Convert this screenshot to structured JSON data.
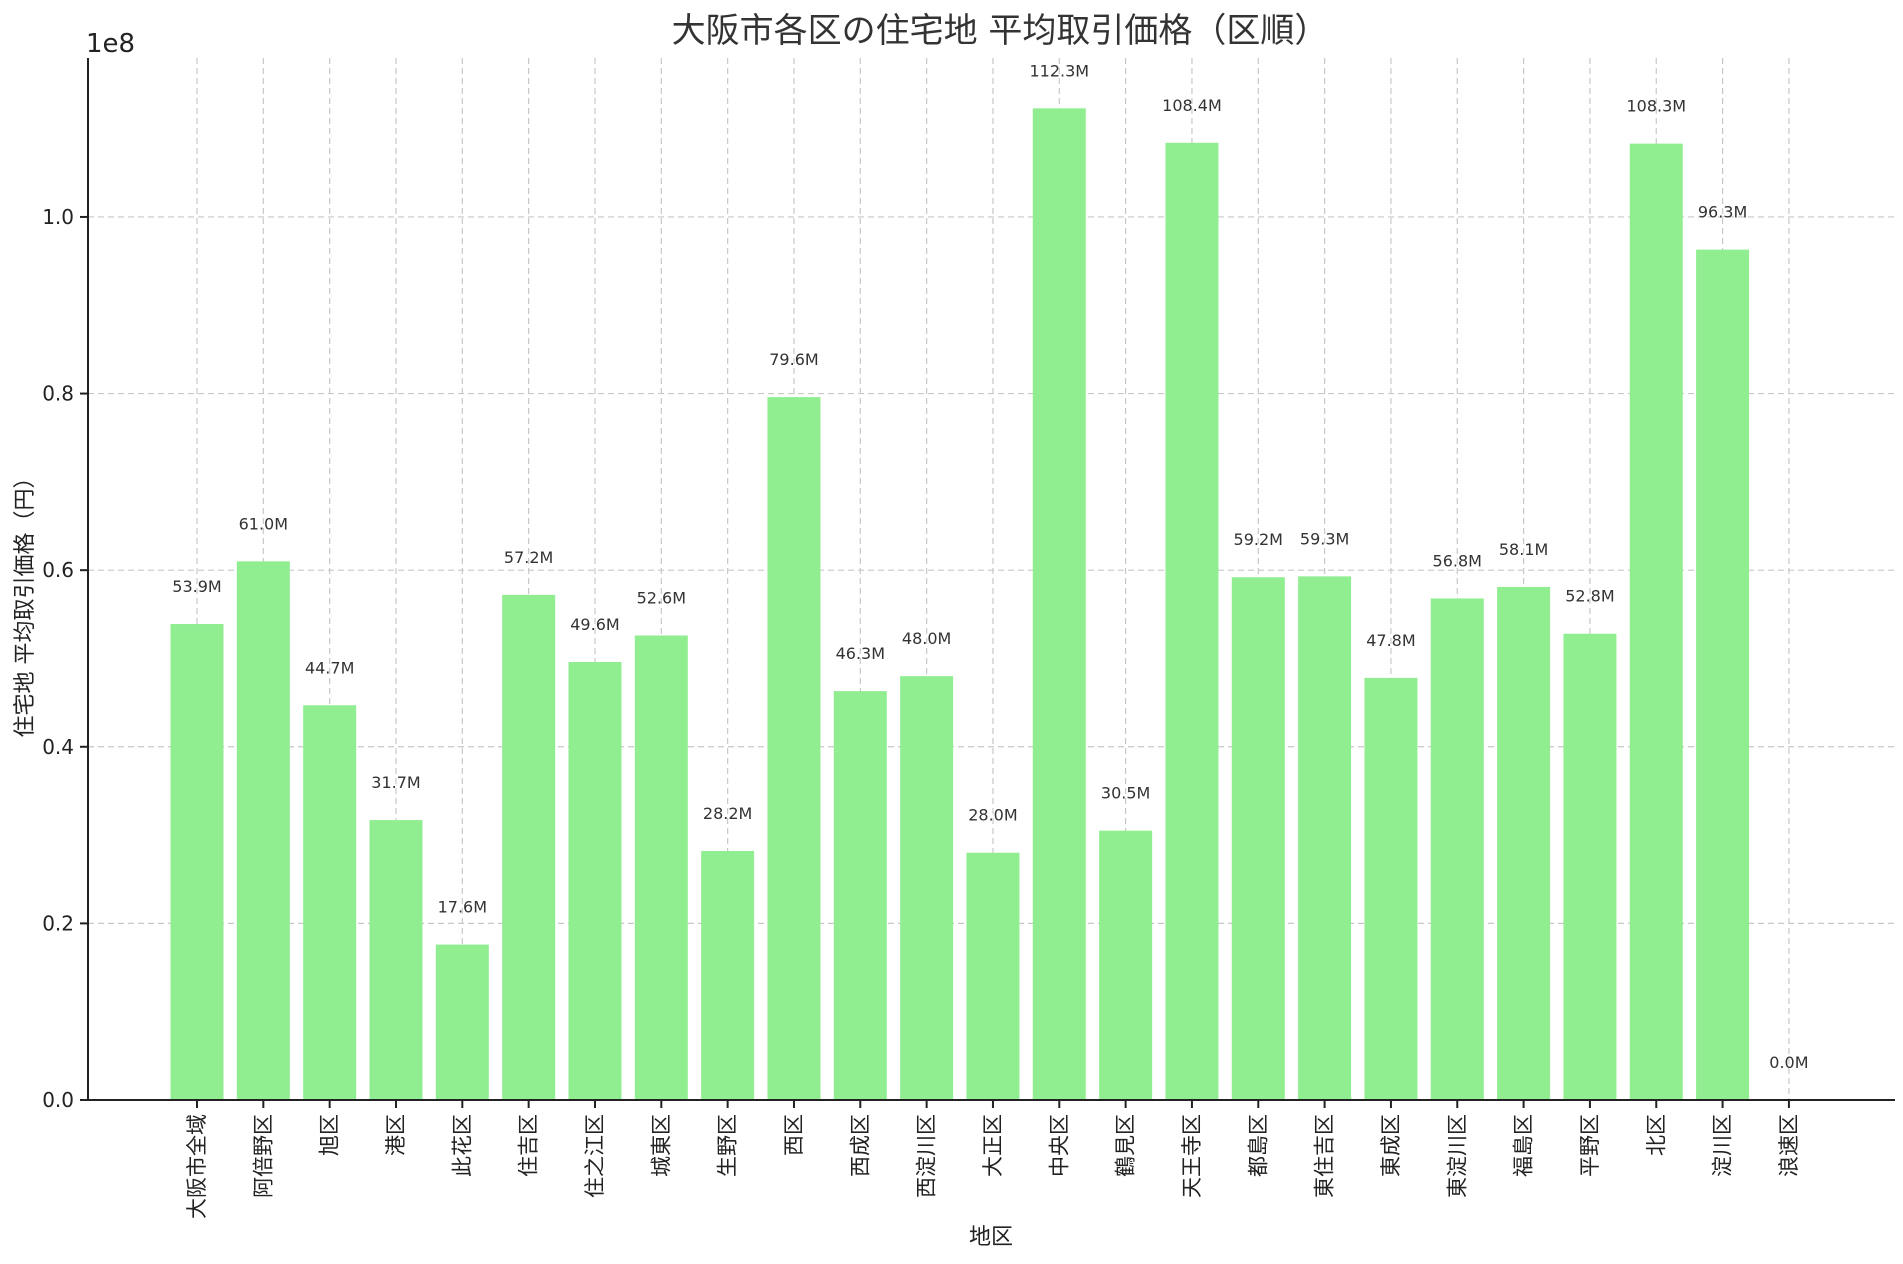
{
  "chart_data": {
    "type": "bar",
    "title": "大阪市各区の住宅地 平均取引価格（区順）",
    "xlabel": "地区",
    "ylabel": "住宅地 平均取引価格（円）",
    "y_offset_label": "1e8",
    "ylim": [
      0,
      118000000
    ],
    "y_ticks": [
      0,
      20000000,
      40000000,
      60000000,
      80000000,
      100000000
    ],
    "y_tick_labels": [
      "0.0",
      "0.2",
      "0.4",
      "0.6",
      "0.8",
      "1.0"
    ],
    "grid": true,
    "bar_color": "#90ee90",
    "categories": [
      "大阪市全域",
      "阿倍野区",
      "旭区",
      "港区",
      "此花区",
      "住吉区",
      "住之江区",
      "城東区",
      "生野区",
      "西区",
      "西成区",
      "西淀川区",
      "大正区",
      "中央区",
      "鶴見区",
      "天王寺区",
      "都島区",
      "東住吉区",
      "東成区",
      "東淀川区",
      "福島区",
      "平野区",
      "北区",
      "淀川区",
      "浪速区"
    ],
    "values": [
      53900000,
      61000000,
      44700000,
      31700000,
      17600000,
      57200000,
      49600000,
      52600000,
      28200000,
      79600000,
      46300000,
      48000000,
      28000000,
      112300000,
      30500000,
      108400000,
      59200000,
      59300000,
      47800000,
      56800000,
      58100000,
      52800000,
      108300000,
      96300000,
      0
    ],
    "data_labels": [
      "53.9M",
      "61.0M",
      "44.7M",
      "31.7M",
      "17.6M",
      "57.2M",
      "49.6M",
      "52.6M",
      "28.2M",
      "79.6M",
      "46.3M",
      "48.0M",
      "28.0M",
      "112.3M",
      "30.5M",
      "108.4M",
      "59.2M",
      "59.3M",
      "47.8M",
      "56.8M",
      "58.1M",
      "52.8M",
      "108.3M",
      "96.3M",
      "0.0M"
    ]
  }
}
